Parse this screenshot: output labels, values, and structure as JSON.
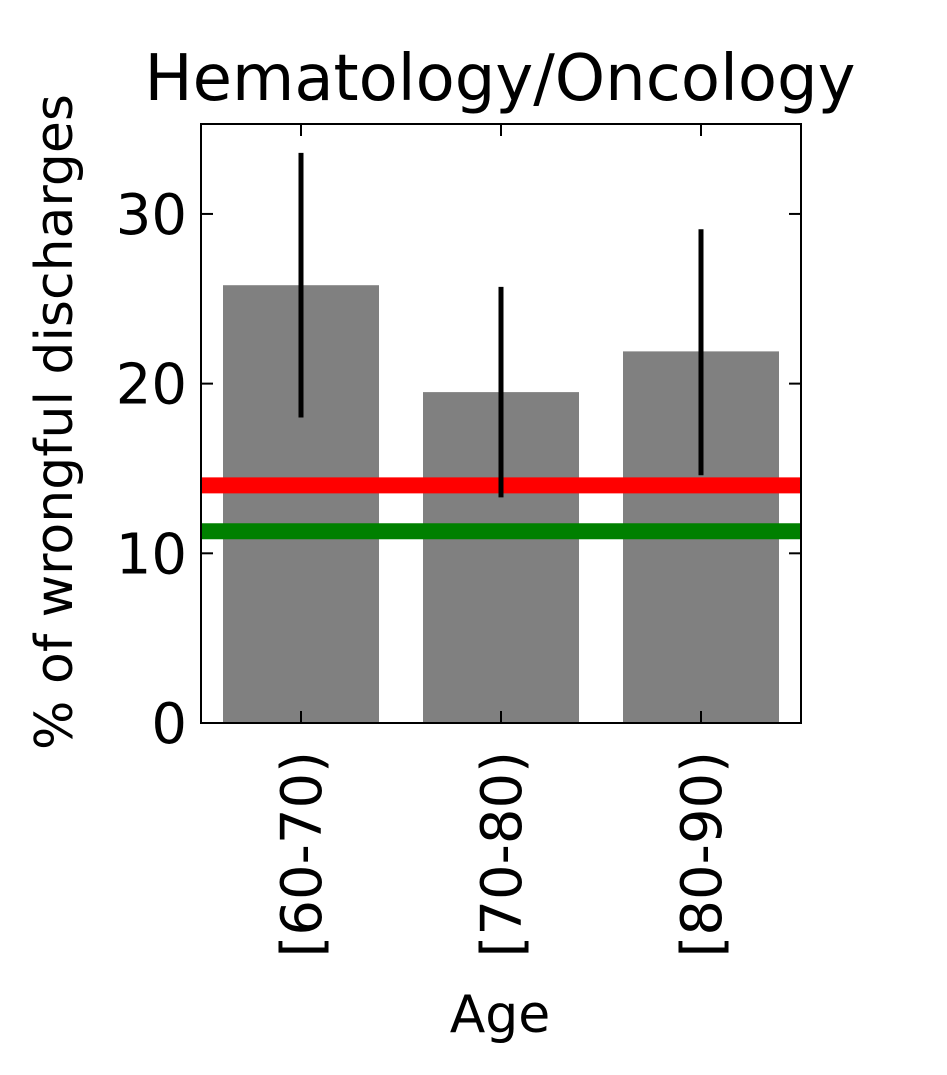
{
  "chart_data": {
    "type": "bar",
    "title": "Hematology/Oncology",
    "xlabel": "Age",
    "ylabel": "% of wrongful discharges",
    "categories": [
      "[60-70)",
      "[70-80)",
      "[80-90)"
    ],
    "values": [
      25.8,
      19.5,
      21.9
    ],
    "error_low": [
      18.0,
      13.3,
      14.6
    ],
    "error_high": [
      33.6,
      25.7,
      29.1
    ],
    "reference_lines": [
      {
        "value": 14.0,
        "color": "#ff0000"
      },
      {
        "value": 11.3,
        "color": "#008000"
      }
    ],
    "ylim": [
      0,
      35.3
    ],
    "yticks": [
      0,
      10,
      20,
      30
    ],
    "bar_color": "#808080",
    "error_color": "#000000",
    "grid": false
  }
}
